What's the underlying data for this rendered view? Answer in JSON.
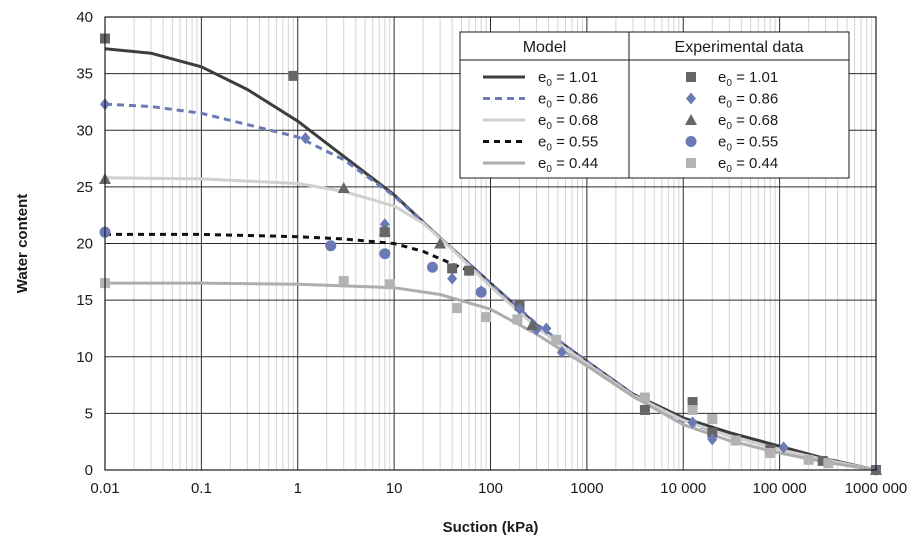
{
  "chart_data": {
    "type": "scatter",
    "xscale": "log",
    "xlim": [
      0.01,
      1000000
    ],
    "ylim": [
      0,
      40
    ],
    "xlabel": "Suction (kPa)",
    "ylabel": "Water content",
    "grid": true,
    "legend_position": "top-right",
    "x_tick_labels": [
      "0.01",
      "0.1",
      "1",
      "10",
      "100",
      "1000",
      "10 000",
      "100 000",
      "1000 000"
    ],
    "y_tick_labels": [
      "0",
      "5",
      "10",
      "15",
      "20",
      "25",
      "30",
      "35",
      "40"
    ],
    "legend": {
      "model_header": "Model",
      "exp_header": "Experimental data"
    },
    "model_series": [
      {
        "name": "e0 = 1.01",
        "label_main": "e",
        "label_sub": "0",
        "label_rest": " = 1.01",
        "color": "#3d3d3d",
        "dash": "solid",
        "points": [
          [
            0.01,
            37.2
          ],
          [
            0.03,
            36.8
          ],
          [
            0.1,
            35.6
          ],
          [
            0.3,
            33.6
          ],
          [
            1,
            30.8
          ],
          [
            3,
            27.7
          ],
          [
            10,
            24.3
          ],
          [
            30,
            20.5
          ],
          [
            100,
            16.5
          ],
          [
            300,
            12.8
          ],
          [
            1000,
            9.6
          ],
          [
            3000,
            6.7
          ],
          [
            10000,
            4.6
          ],
          [
            30000,
            3.3
          ],
          [
            100000,
            2.1
          ],
          [
            300000,
            1.0
          ],
          [
            1000000,
            0
          ]
        ]
      },
      {
        "name": "e0 = 0.86",
        "label_main": "e",
        "label_sub": "0",
        "label_rest": " = 0.86",
        "color": "#6b79b4",
        "dash": "7,5",
        "points": [
          [
            0.01,
            32.3
          ],
          [
            0.03,
            32.1
          ],
          [
            0.1,
            31.5
          ],
          [
            0.3,
            30.5
          ],
          [
            1,
            29.4
          ],
          [
            3,
            27.4
          ],
          [
            10,
            24.2
          ],
          [
            30,
            20.5
          ],
          [
            100,
            16.5
          ],
          [
            300,
            12.9
          ],
          [
            1000,
            9.6
          ],
          [
            3000,
            6.7
          ],
          [
            10000,
            4.3
          ],
          [
            30000,
            3.0
          ],
          [
            100000,
            1.8
          ],
          [
            300000,
            0.9
          ],
          [
            1000000,
            0
          ]
        ]
      },
      {
        "name": "e0 = 0.68",
        "label_main": "e",
        "label_sub": "0",
        "label_rest": " = 0.68",
        "color": "#cfcfcf",
        "dash": "solid",
        "points": [
          [
            0.01,
            25.8
          ],
          [
            0.1,
            25.7
          ],
          [
            1,
            25.3
          ],
          [
            3,
            24.6
          ],
          [
            10,
            23.3
          ],
          [
            20,
            21.8
          ],
          [
            40,
            19.5
          ],
          [
            100,
            16.2
          ],
          [
            300,
            12.6
          ],
          [
            1000,
            9.4
          ],
          [
            3000,
            6.6
          ],
          [
            10000,
            4.4
          ],
          [
            30000,
            3.0
          ],
          [
            100000,
            1.8
          ],
          [
            300000,
            0.9
          ],
          [
            1000000,
            0
          ]
        ]
      },
      {
        "name": "e0 = 0.55",
        "label_main": "e",
        "label_sub": "0",
        "label_rest": " = 0.55",
        "color": "#111111",
        "dash": "6,5",
        "points": [
          [
            0.01,
            20.8
          ],
          [
            0.1,
            20.8
          ],
          [
            1,
            20.6
          ],
          [
            3,
            20.4
          ],
          [
            10,
            20.0
          ],
          [
            20,
            19.3
          ],
          [
            40,
            18.2
          ],
          [
            60,
            17.6
          ]
        ]
      },
      {
        "name": "e0 = 0.44",
        "label_main": "e",
        "label_sub": "0",
        "label_rest": " = 0.44",
        "color": "#adadad",
        "dash": "solid",
        "points": [
          [
            0.01,
            16.5
          ],
          [
            0.1,
            16.5
          ],
          [
            1,
            16.4
          ],
          [
            10,
            16.1
          ],
          [
            30,
            15.5
          ],
          [
            100,
            14.2
          ],
          [
            300,
            12.0
          ],
          [
            1000,
            9.2
          ],
          [
            3000,
            6.5
          ],
          [
            10000,
            4.0
          ],
          [
            30000,
            2.6
          ],
          [
            100000,
            1.5
          ],
          [
            300000,
            0.7
          ],
          [
            1000000,
            0
          ]
        ]
      }
    ],
    "experimental_series": [
      {
        "name": "e0 = 1.01",
        "label_main": "e",
        "label_sub": "0",
        "label_rest": " = 1.01",
        "marker": "square",
        "color": "#666666",
        "points": [
          [
            0.01,
            38.1
          ],
          [
            0.9,
            34.8
          ],
          [
            8,
            21.0
          ],
          [
            40,
            17.8
          ],
          [
            60,
            17.6
          ],
          [
            200,
            14.5
          ],
          [
            4000,
            5.3
          ],
          [
            12500,
            6.0
          ],
          [
            20000,
            3.3
          ],
          [
            80000,
            1.8
          ],
          [
            280000,
            0.8
          ],
          [
            1000000,
            0
          ]
        ]
      },
      {
        "name": "e0 = 0.86",
        "label_main": "e",
        "label_sub": "0",
        "label_rest": " = 0.86",
        "marker": "diamond",
        "color": "#6b79b4",
        "points": [
          [
            0.01,
            32.3
          ],
          [
            1.2,
            29.3
          ],
          [
            8,
            21.7
          ],
          [
            40,
            16.9
          ],
          [
            80,
            15.8
          ],
          [
            200,
            14.2
          ],
          [
            300,
            12.4
          ],
          [
            380,
            12.5
          ],
          [
            550,
            10.4
          ],
          [
            12500,
            4.2
          ],
          [
            20000,
            2.7
          ],
          [
            110000,
            2.0
          ],
          [
            1000000,
            0
          ]
        ]
      },
      {
        "name": "e0 = 0.68",
        "label_main": "e",
        "label_sub": "0",
        "label_rest": " = 0.68",
        "marker": "triangle",
        "color": "#666666",
        "points": [
          [
            0.01,
            25.7
          ],
          [
            3,
            24.9
          ],
          [
            8,
            21.1
          ],
          [
            30,
            20.0
          ],
          [
            270,
            12.8
          ],
          [
            1000000,
            0
          ]
        ]
      },
      {
        "name": "e0 = 0.55",
        "label_main": "e",
        "label_sub": "0",
        "label_rest": " = 0.55",
        "marker": "circle",
        "color": "#6b79b4",
        "points": [
          [
            0.01,
            21.0
          ],
          [
            2.2,
            19.8
          ],
          [
            8,
            19.1
          ],
          [
            25,
            17.9
          ],
          [
            80,
            15.7
          ]
        ]
      },
      {
        "name": "e0 = 0.44",
        "label_main": "e",
        "label_sub": "0",
        "label_rest": " = 0.44",
        "marker": "square",
        "color": "#b3b3b3",
        "points": [
          [
            0.01,
            16.5
          ],
          [
            3,
            16.7
          ],
          [
            9,
            16.4
          ],
          [
            45,
            14.3
          ],
          [
            90,
            13.5
          ],
          [
            190,
            13.3
          ],
          [
            480,
            11.5
          ],
          [
            4000,
            6.4
          ],
          [
            12500,
            5.3
          ],
          [
            20000,
            4.5
          ],
          [
            35000,
            2.6
          ],
          [
            80000,
            1.5
          ],
          [
            200000,
            0.9
          ],
          [
            320000,
            0.6
          ]
        ]
      }
    ]
  }
}
